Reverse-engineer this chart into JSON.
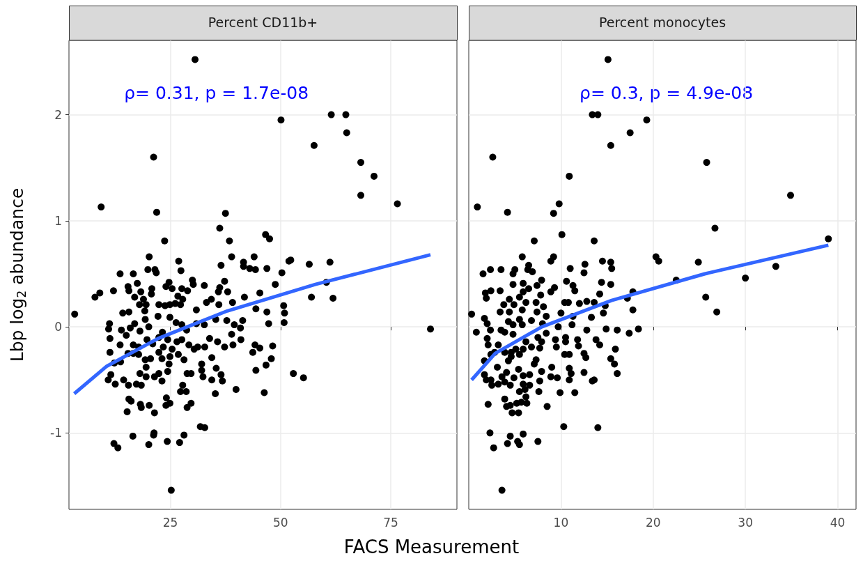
{
  "chart_data": [
    {
      "type": "scatter",
      "title": "Percent CD11b+",
      "xlabel": "FACS Measurement",
      "ylabel": "Lbp log$_{2}$ abundance",
      "annotations": [
        "ρ= 0.31, p = 1.7e-08"
      ],
      "xlim": [
        2,
        90
      ],
      "xticks": [
        25,
        50,
        75
      ],
      "ylim": [
        -1.72,
        2.7
      ],
      "yticks": [
        -1,
        0,
        1,
        2
      ],
      "grid": true,
      "series": [
        {
          "marker": "circle",
          "color": "#000000",
          "x": [
            30.6,
            21.2,
            9.3,
            50.1,
            61.5,
            64.8,
            65.0,
            57.6,
            68.2,
            71.2,
            68.2,
            76.5,
            21.9,
            37.5,
            36.2,
            46.6,
            47.5,
            23.7,
            38.4,
            20.2,
            38.9,
            44.0,
            26.9,
            27.4,
            19.9,
            21.5,
            21.8,
            13.6,
            16.6,
            36.5,
            41.6,
            41.6,
            43.0,
            44.3,
            46.9,
            51.9,
            52.3,
            56.5,
            61.2,
            50.3,
            3.3,
            7.9,
            9.0,
            12.1,
            84.0,
            15.4,
            15.6,
            17.5,
            18.3,
            16.9,
            18.9,
            19.5,
            18.0,
            19.2,
            14.2,
            15.6,
            20.8,
            20.7,
            24.7,
            24.0,
            25.4,
            27.6,
            28.9,
            30.0,
            30.2,
            32.7,
            36.2,
            35.9,
            38.0,
            37.3,
            26.7,
            27.8,
            26.1,
            27.3,
            22.4,
            23.8,
            24.9,
            30.9,
            33.2,
            34.3,
            36.0,
            39.1,
            41.8,
            45.3,
            44.4,
            46.9,
            48.8,
            57.0,
            61.9,
            60.4,
            50.7,
            50.9,
            50.8,
            47.3,
            41.4,
            39.5,
            40.9,
            35.3,
            37.8,
            32.7,
            30.9,
            28.7,
            27.6,
            26.3,
            24.9,
            22.2,
            19.3,
            20.1,
            18.1,
            16.9,
            15.9,
            15.0,
            13.9,
            11.2,
            11.0,
            11.3,
            13.6,
            11.3,
            12.3,
            13.7,
            15.4,
            16.6,
            17.8,
            16.6,
            17.8,
            19.7,
            21.0,
            22.4,
            23.2,
            24.4,
            23.4,
            22.4,
            25.4,
            26.5,
            27.6,
            29.2,
            30.4,
            28.1,
            26.8,
            24.9,
            23.1,
            20.5,
            19.3,
            19.5,
            18.1,
            19.5,
            21.4,
            22.4,
            23.1,
            24.4,
            24.7,
            32.1,
            32.1,
            32.4,
            34.4,
            35.4,
            36.5,
            36.8,
            34.4,
            31.2,
            32.8,
            33.9,
            35.7,
            37.3,
            38.9,
            39.2,
            41.0,
            44.2,
            45.3,
            48.2,
            43.7,
            47.9,
            46.7,
            44.4,
            52.9,
            55.2,
            46.3,
            39.9,
            35.2,
            28.8,
            29.7,
            27.3,
            28.6,
            27.8,
            10.9,
            11.5,
            12.5,
            14.4,
            15.5,
            17.3,
            18.4,
            15.6,
            16.1,
            15.2,
            18.2,
            18.4,
            20.2,
            21.4,
            24.1,
            24.9,
            24.0,
            29.7,
            28.8,
            31.8,
            32.8,
            28.1,
            27.1,
            24.3,
            21.3,
            21.2,
            20.1,
            16.5,
            12.2,
            13.1,
            25.2
          ],
          "values": [
            2.52,
            1.6,
            1.13,
            1.95,
            2.0,
            2.0,
            1.83,
            1.71,
            1.55,
            1.42,
            1.24,
            1.16,
            1.08,
            1.07,
            0.93,
            0.87,
            0.83,
            0.81,
            0.81,
            0.66,
            0.66,
            0.66,
            0.62,
            0.53,
            0.54,
            0.54,
            0.51,
            0.5,
            0.5,
            0.58,
            0.61,
            0.57,
            0.55,
            0.54,
            0.55,
            0.62,
            0.63,
            0.59,
            0.61,
            0.51,
            0.12,
            0.28,
            0.32,
            0.34,
            -0.02,
            0.38,
            0.34,
            0.41,
            0.33,
            0.28,
            0.26,
            0.21,
            0.21,
            0.15,
            0.13,
            0.14,
            0.36,
            0.31,
            0.42,
            0.38,
            0.36,
            0.36,
            0.34,
            0.44,
            0.4,
            0.39,
            0.37,
            0.33,
            0.33,
            0.43,
            0.29,
            0.26,
            0.22,
            0.21,
            0.21,
            0.2,
            0.21,
            0.16,
            0.23,
            0.26,
            0.21,
            0.23,
            0.28,
            0.32,
            0.17,
            0.14,
            0.4,
            0.28,
            0.27,
            0.42,
            0.2,
            0.13,
            0.04,
            0.03,
            0.06,
            0.02,
            -0.01,
            0.07,
            0.06,
            0.02,
            0.03,
            -0.03,
            0.02,
            0.04,
            0.09,
            0.1,
            0.07,
            0.0,
            -0.04,
            0.03,
            -0.01,
            -0.08,
            -0.03,
            0.03,
            -0.02,
            -0.11,
            -0.17,
            -0.24,
            -0.34,
            -0.33,
            -0.25,
            -0.17,
            -0.19,
            -0.25,
            -0.26,
            -0.12,
            -0.16,
            -0.1,
            -0.05,
            -0.12,
            -0.19,
            -0.24,
            -0.21,
            -0.14,
            -0.12,
            -0.17,
            -0.21,
            -0.31,
            -0.26,
            -0.28,
            -0.3,
            -0.3,
            -0.31,
            -0.38,
            -0.44,
            -0.47,
            -0.47,
            -0.44,
            -0.51,
            -0.42,
            -0.35,
            -0.35,
            -0.41,
            -0.47,
            -0.5,
            -0.39,
            -0.45,
            -0.51,
            -0.29,
            -0.19,
            -0.19,
            -0.11,
            -0.14,
            -0.19,
            -0.07,
            -0.17,
            -0.12,
            -0.17,
            -0.2,
            -0.18,
            -0.24,
            -0.3,
            -0.36,
            -0.41,
            -0.44,
            -0.48,
            -0.62,
            -0.59,
            -0.63,
            -0.44,
            -0.44,
            -0.61,
            -0.61,
            -0.55,
            -0.5,
            -0.45,
            -0.54,
            -0.5,
            -0.55,
            -0.54,
            -0.55,
            -0.68,
            -0.7,
            -0.8,
            -0.73,
            -0.76,
            -0.74,
            -0.81,
            -0.67,
            -0.72,
            -0.74,
            -0.72,
            -0.76,
            -0.94,
            -0.95,
            -1.02,
            -1.09,
            -1.08,
            -1.0,
            -1.02,
            -1.11,
            -1.03,
            -1.1,
            -1.14,
            -1.54
          ]
        },
        {
          "type": "line",
          "marker": "none",
          "color": "#3366ff",
          "x": [
            3.2,
            10.6,
            22.2,
            37.9,
            57.9,
            84.0
          ],
          "values": [
            -0.63,
            -0.37,
            -0.11,
            0.15,
            0.4,
            0.68
          ]
        }
      ]
    },
    {
      "type": "scatter",
      "title": "Percent monocytes",
      "annotations": [
        "ρ= 0.3, p = 4.9e-08"
      ],
      "xlim": [
        0,
        42
      ],
      "xticks": [
        10,
        20,
        30,
        40
      ],
      "ylim": [
        -1.72,
        2.7
      ],
      "yticks": [
        -1,
        0,
        1,
        2
      ],
      "tick_labels": "x",
      "grid": true,
      "series": [
        {
          "marker": "circle",
          "color": "#000000",
          "x": [
            15.1,
            2.6,
            0.93,
            4.2,
            13.4,
            14.0,
            19.3,
            17.5,
            15.4,
            25.8,
            10.9,
            34.9,
            9.8,
            9.2,
            10.1,
            7.1,
            13.6,
            26.7,
            39.0,
            5.8,
            20.3,
            20.6,
            24.9,
            33.3,
            6.5,
            6.4,
            6.9,
            8.9,
            9.2,
            11.0,
            12.6,
            12.5,
            14.5,
            15.4,
            15.5,
            1.55,
            2.35,
            3.5,
            4.8,
            5.0,
            30.0,
            0.31,
            0.82,
            1.8,
            1.9,
            2.4,
            3.4,
            25.7,
            26.9,
            22.5,
            17.8,
            17.2,
            17.8,
            1.7,
            2.0,
            2.35,
            2.0,
            2.1,
            1.7,
            2.4,
            2.8,
            3.2,
            1.7,
            1.9,
            2.4,
            2.5,
            3.2,
            2.1,
            2.3,
            2.7,
            3.1,
            3.6,
            3.9,
            3.5,
            3.9,
            3.4,
            3.8,
            4.4,
            4.4,
            4.9,
            4.3,
            4.8,
            4.8,
            5.5,
            5.8,
            5.5,
            5.9,
            6.2,
            5.8,
            6.5,
            5.9,
            4.8,
            7.4,
            7.9,
            7.8,
            7.3,
            7.4,
            6.8,
            8.1,
            8.4,
            8.0,
            7.5,
            8.4,
            3.9,
            4.6,
            5.1,
            5.5,
            5.9,
            6.2,
            6.8,
            7.7,
            7.3,
            7.1,
            4.3,
            4.6,
            4.9,
            4.1,
            4.5,
            5.4,
            5.9,
            6.6,
            7.9,
            7.7,
            6.6,
            5.9,
            5.5,
            6.1,
            6.2,
            6.3,
            5.7,
            5.2,
            3.9,
            4.1,
            4.7,
            5.4,
            4.5,
            7.6,
            8.5,
            8.9,
            9.0,
            9.5,
            9.4,
            9.7,
            10.0,
            9.3,
            8.9,
            10.4,
            10.8,
            10.5,
            10.5,
            10.9,
            10.4,
            10.9,
            9.6,
            9.9,
            11.5,
            10.3,
            14.0,
            7.5,
            5.9,
            4.5,
            4.2,
            5.3,
            5.5,
            3.6,
            11.2,
            11.8,
            11.9,
            12.5,
            12.7,
            12.5,
            10.9,
            11.1,
            13.4,
            13.6,
            13.8,
            14.2,
            14.9,
            16.1,
            17.4,
            18.4,
            15.9,
            15.4,
            15.8,
            16.1,
            11.3,
            12.0,
            12.8,
            13.6,
            13.3,
            14.6,
            14.8,
            14.2,
            14.4,
            15.4,
            11.5,
            11.3,
            10.6,
            7.9,
            12.8
          ],
          "values": [
            2.52,
            1.6,
            1.13,
            1.08,
            2.0,
            2.0,
            1.95,
            1.83,
            1.71,
            1.55,
            1.42,
            1.24,
            1.16,
            1.07,
            0.87,
            0.81,
            0.81,
            0.93,
            0.83,
            0.66,
            0.66,
            0.62,
            0.61,
            0.57,
            0.58,
            0.54,
            0.52,
            0.62,
            0.66,
            0.55,
            0.59,
            0.51,
            0.62,
            0.61,
            0.55,
            0.5,
            0.54,
            0.54,
            0.5,
            0.54,
            0.46,
            0.12,
            -0.05,
            0.32,
            0.27,
            0.34,
            0.34,
            0.28,
            0.14,
            0.44,
            0.16,
            0.27,
            0.33,
            0.08,
            0.03,
            -0.03,
            -0.11,
            -0.17,
            -0.32,
            -0.26,
            -0.24,
            -0.17,
            -0.45,
            -0.5,
            -0.5,
            -0.55,
            -0.54,
            -0.73,
            -1.0,
            -1.14,
            -0.38,
            -0.47,
            -0.52,
            -0.03,
            -0.05,
            0.14,
            0.21,
            0.26,
            0.14,
            0.21,
            0.05,
            0.02,
            -0.07,
            0.07,
            0.02,
            0.28,
            0.33,
            0.23,
            0.16,
            0.36,
            0.41,
            0.4,
            0.39,
            0.44,
            0.3,
            0.23,
            0.14,
            0.06,
            0.19,
            0.1,
            0.03,
            -0.1,
            -0.06,
            -0.24,
            -0.24,
            -0.21,
            -0.26,
            -0.21,
            -0.14,
            -0.19,
            -0.2,
            -0.31,
            -0.35,
            -0.32,
            -0.28,
            -0.48,
            -0.43,
            -0.55,
            -0.4,
            -0.46,
            -0.45,
            -0.42,
            -0.51,
            -0.55,
            -0.54,
            -0.61,
            -0.59,
            -0.66,
            -0.72,
            -0.71,
            -0.72,
            -0.68,
            -0.75,
            -0.81,
            -0.81,
            -0.74,
            -0.61,
            -0.75,
            -0.47,
            -0.38,
            -0.19,
            -0.12,
            0.0,
            0.13,
            0.37,
            0.33,
            0.23,
            0.23,
            -0.1,
            -0.14,
            -0.26,
            -0.26,
            -0.5,
            -0.48,
            -0.62,
            -0.62,
            -0.94,
            -0.95,
            -1.08,
            -1.01,
            -1.03,
            -1.1,
            -1.08,
            -1.11,
            -1.54,
            0.02,
            -0.12,
            -0.18,
            -0.25,
            -0.29,
            -0.43,
            -0.39,
            -0.44,
            -0.51,
            -0.5,
            -0.12,
            -0.17,
            -0.02,
            -0.03,
            -0.06,
            -0.02,
            -0.21,
            -0.3,
            -0.35,
            -0.44,
            0.1,
            0.22,
            0.24,
            0.23,
            0.09,
            0.13,
            0.2,
            0.31,
            0.42,
            0.4,
            0.34,
            0.39,
            0.43,
            -0.14,
            -0.03
          ]
        },
        {
          "type": "line",
          "marker": "none",
          "color": "#3366ff",
          "x": [
            0.31,
            2.87,
            7.92,
            15.5,
            25.6,
            39.0
          ],
          "values": [
            -0.5,
            -0.25,
            0.0,
            0.25,
            0.5,
            0.77
          ]
        }
      ]
    }
  ]
}
